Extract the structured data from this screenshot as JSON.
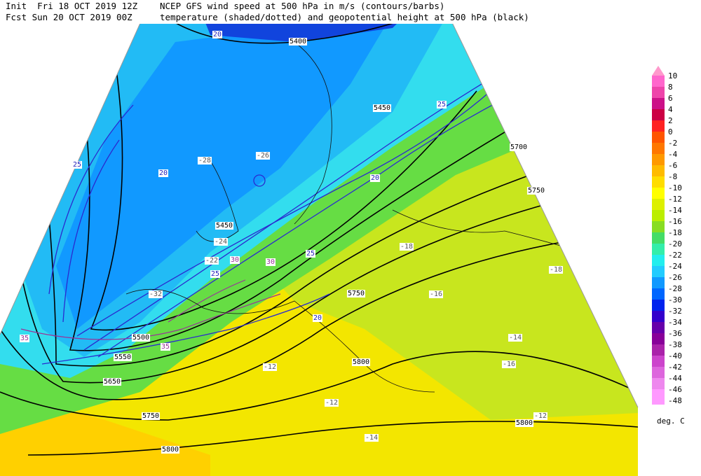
{
  "header": {
    "init": "Init  Fri 18 OCT 2019 12Z",
    "fcst": "Fcst Sun 20 OCT 2019 00Z",
    "line1": "NCEP GFS wind speed at 500 hPa in m/s (contours/barbs)",
    "line2": "temperature (shaded/dotted) and geopotential height at 500 hPa (black)"
  },
  "colorbar": {
    "units": "deg. C",
    "levels": [
      {
        "label": "10",
        "color": "#ff99cc"
      },
      {
        "label": "8",
        "color": "#ff66cc"
      },
      {
        "label": "6",
        "color": "#ee44aa"
      },
      {
        "label": "4",
        "color": "#cc1188"
      },
      {
        "label": "2",
        "color": "#cc0044"
      },
      {
        "label": "0",
        "color": "#ff2222"
      },
      {
        "label": "-2",
        "color": "#ff5500"
      },
      {
        "label": "-4",
        "color": "#ff7700"
      },
      {
        "label": "-6",
        "color": "#ff9900"
      },
      {
        "label": "-8",
        "color": "#ffbb00"
      },
      {
        "label": "-10",
        "color": "#ffdd00"
      },
      {
        "label": "-12",
        "color": "#ffff00"
      },
      {
        "label": "-14",
        "color": "#ddf000"
      },
      {
        "label": "-16",
        "color": "#bbee00"
      },
      {
        "label": "-18",
        "color": "#88dd22"
      },
      {
        "label": "-20",
        "color": "#44dd66"
      },
      {
        "label": "-22",
        "color": "#33eeaa"
      },
      {
        "label": "-24",
        "color": "#22eeee"
      },
      {
        "label": "-26",
        "color": "#22ccff"
      },
      {
        "label": "-28",
        "color": "#1199ff"
      },
      {
        "label": "-30",
        "color": "#0066ff"
      },
      {
        "label": "-32",
        "color": "#0022ee"
      },
      {
        "label": "-34",
        "color": "#3300cc"
      },
      {
        "label": "-36",
        "color": "#6600aa"
      },
      {
        "label": "-38",
        "color": "#880099"
      },
      {
        "label": "-40",
        "color": "#aa22aa"
      },
      {
        "label": "-42",
        "color": "#cc44cc"
      },
      {
        "label": "-44",
        "color": "#dd66dd"
      },
      {
        "label": "-46",
        "color": "#ee88ee"
      },
      {
        "label": "-48",
        "color": "#ff99ff"
      }
    ]
  },
  "map": {
    "labels": [
      "5400",
      "5450",
      "5450",
      "5500",
      "5550",
      "5650",
      "5700",
      "5750",
      "5750",
      "5750",
      "5800",
      "5800",
      "5800",
      "20",
      "20",
      "20",
      "25",
      "25",
      "25",
      "30",
      "30",
      "35",
      "35",
      "20",
      "25",
      "-28",
      "-26",
      "-24",
      "-22",
      "-32",
      "-18",
      "-16",
      "-14",
      "-12",
      "-12",
      "-14",
      "-16",
      "-18",
      "-12"
    ]
  }
}
